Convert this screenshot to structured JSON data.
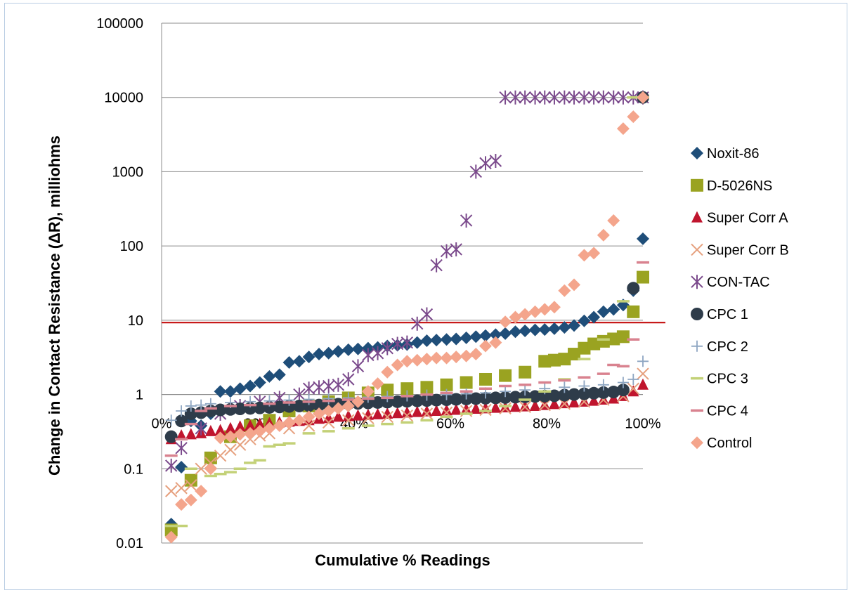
{
  "chart_data": {
    "type": "scatter",
    "title": "",
    "xlabel": "Cumulative % Readings",
    "ylabel": "Change in  Contact Resistance (ΔR), milliohms",
    "x_scale": "linear",
    "y_scale": "log",
    "xlim": [
      0,
      100
    ],
    "ylim": [
      0.01,
      100000
    ],
    "x_ticks": [
      "0%",
      "20%",
      "40%",
      "60%",
      "80%",
      "100%"
    ],
    "y_ticks": [
      "0.01",
      "0.1",
      "1",
      "10",
      "100",
      "1000",
      "10000",
      "100000"
    ],
    "grid": "horizontal",
    "legend_position": "right",
    "reference_line": {
      "y": 9.3,
      "color": "#c00000"
    },
    "series": [
      {
        "name": "Noxit-86",
        "marker": "diamond",
        "color": "#1f4e79",
        "x": [
          2,
          4.1,
          6.1,
          8.2,
          10.2,
          12.2,
          14.3,
          16.3,
          18.4,
          20.4,
          22.4,
          24.5,
          26.5,
          28.6,
          30.6,
          32.7,
          34.7,
          36.7,
          38.8,
          40.8,
          42.9,
          44.9,
          46.9,
          49,
          51,
          53.1,
          55.1,
          57.1,
          59.2,
          61.2,
          63.3,
          65.3,
          67.3,
          69.4,
          71.4,
          73.5,
          75.5,
          77.6,
          79.6,
          81.6,
          83.7,
          85.7,
          87.8,
          89.8,
          91.8,
          93.9,
          95.9,
          98,
          100
        ],
        "y": [
          0.018,
          0.105,
          0.44,
          0.38,
          0.55,
          1.1,
          1.1,
          1.2,
          1.3,
          1.45,
          1.75,
          1.85,
          2.7,
          2.8,
          3.2,
          3.5,
          3.6,
          3.8,
          4.0,
          4.1,
          4.2,
          4.3,
          4.5,
          4.6,
          4.7,
          5.0,
          5.3,
          5.4,
          5.5,
          5.6,
          5.8,
          6.0,
          6.2,
          6.4,
          6.6,
          7.0,
          7.2,
          7.4,
          7.5,
          7.7,
          8.0,
          8.5,
          9.8,
          11,
          13,
          14,
          16,
          25,
          125
        ]
      },
      {
        "name": "D-5026NS",
        "marker": "square",
        "color": "#9aa321",
        "x": [
          2,
          6.1,
          10.2,
          14.3,
          18.4,
          22.4,
          26.5,
          30.6,
          34.7,
          38.8,
          42.9,
          46.9,
          51,
          55.1,
          59.2,
          63.3,
          67.3,
          71.4,
          75.5,
          79.6,
          81.6,
          83.7,
          85.7,
          87.8,
          89.8,
          91.8,
          93.9,
          95.9,
          98,
          100
        ],
        "y": [
          0.015,
          0.07,
          0.14,
          0.27,
          0.38,
          0.45,
          0.6,
          0.7,
          0.8,
          0.9,
          1.05,
          1.15,
          1.2,
          1.25,
          1.35,
          1.45,
          1.6,
          1.8,
          2.0,
          2.8,
          2.9,
          3.0,
          3.5,
          4.2,
          4.8,
          5.2,
          5.6,
          6.0,
          13,
          38
        ]
      },
      {
        "name": "Super Corr A",
        "marker": "triangle",
        "color": "#c0152e",
        "x": [
          2,
          4.1,
          6.1,
          8.2,
          10.2,
          12.2,
          14.3,
          16.3,
          18.4,
          20.4,
          22.4,
          24.5,
          26.5,
          28.6,
          30.6,
          32.7,
          34.7,
          36.7,
          38.8,
          40.8,
          42.9,
          44.9,
          46.9,
          49,
          51,
          53.1,
          55.1,
          57.1,
          59.2,
          61.2,
          63.3,
          65.3,
          67.3,
          69.4,
          71.4,
          73.5,
          75.5,
          77.6,
          79.6,
          81.6,
          83.7,
          85.7,
          87.8,
          89.8,
          91.8,
          93.9,
          95.9,
          98,
          100
        ],
        "y": [
          0.25,
          0.28,
          0.29,
          0.3,
          0.32,
          0.33,
          0.35,
          0.37,
          0.38,
          0.4,
          0.41,
          0.42,
          0.43,
          0.44,
          0.45,
          0.47,
          0.48,
          0.5,
          0.51,
          0.52,
          0.53,
          0.54,
          0.55,
          0.56,
          0.57,
          0.58,
          0.59,
          0.6,
          0.61,
          0.62,
          0.63,
          0.64,
          0.65,
          0.66,
          0.67,
          0.68,
          0.69,
          0.7,
          0.72,
          0.74,
          0.76,
          0.78,
          0.8,
          0.82,
          0.85,
          0.88,
          0.95,
          1.1,
          1.35
        ]
      },
      {
        "name": "Super Corr B",
        "marker": "x",
        "color": "#e6a07e",
        "x": [
          2,
          4.1,
          6.1,
          8.2,
          10.2,
          12.2,
          14.3,
          16.3,
          18.4,
          20.4,
          22.4,
          26.5,
          30.6,
          34.7,
          38.8,
          42.9,
          46.9,
          51,
          55.1,
          59.2,
          63.3,
          67.3,
          71.4,
          75.5,
          79.6,
          83.7,
          87.8,
          91.8,
          95.9,
          98,
          100
        ],
        "y": [
          0.05,
          0.055,
          0.06,
          0.1,
          0.12,
          0.15,
          0.18,
          0.21,
          0.25,
          0.28,
          0.3,
          0.35,
          0.38,
          0.42,
          0.45,
          0.48,
          0.5,
          0.52,
          0.55,
          0.57,
          0.6,
          0.62,
          0.65,
          0.68,
          0.72,
          0.75,
          0.8,
          0.85,
          0.95,
          1.2,
          1.9
        ]
      },
      {
        "name": "CON-TAC",
        "marker": "asterisk",
        "color": "#7b4a8c",
        "x": [
          2,
          4.1,
          8.2,
          12.2,
          16.3,
          20.4,
          24.5,
          28.6,
          30.6,
          32.7,
          34.7,
          36.7,
          38.8,
          40.8,
          42.9,
          44.9,
          46.9,
          49,
          51,
          53.1,
          55.1,
          57.1,
          59.2,
          61.2,
          63.3,
          65.3,
          67.3,
          69.4,
          71.4,
          73.5,
          75.5,
          77.6,
          79.6,
          81.6,
          83.7,
          85.7,
          87.8,
          89.8,
          91.8,
          93.9,
          95.9,
          98,
          100
        ],
        "y": [
          0.11,
          0.19,
          0.35,
          0.55,
          0.7,
          0.8,
          0.9,
          1.0,
          1.2,
          1.25,
          1.3,
          1.35,
          1.6,
          2.4,
          3.4,
          3.6,
          4.2,
          4.8,
          5.0,
          9,
          12,
          55,
          85,
          90,
          220,
          1000,
          1300,
          1400,
          10000,
          10000,
          10000,
          10000,
          10000,
          10000,
          10000,
          10000,
          10000,
          10000,
          10000,
          10000,
          10000,
          10000,
          10000
        ]
      },
      {
        "name": "CPC 1",
        "marker": "circle",
        "color": "#2e3c4a",
        "x": [
          2,
          4.1,
          6.1,
          8.2,
          10.2,
          12.2,
          14.3,
          16.3,
          18.4,
          20.4,
          22.4,
          24.5,
          26.5,
          28.6,
          30.6,
          32.7,
          34.7,
          36.7,
          38.8,
          40.8,
          42.9,
          44.9,
          46.9,
          49,
          51,
          53.1,
          55.1,
          57.1,
          59.2,
          61.2,
          63.3,
          65.3,
          67.3,
          69.4,
          71.4,
          73.5,
          75.5,
          77.6,
          79.6,
          81.6,
          83.7,
          85.7,
          87.8,
          89.8,
          91.8,
          93.9,
          95.9,
          98,
          100
        ],
        "y": [
          0.27,
          0.44,
          0.55,
          0.57,
          0.6,
          0.62,
          0.63,
          0.64,
          0.65,
          0.66,
          0.67,
          0.68,
          0.69,
          0.7,
          0.71,
          0.72,
          0.73,
          0.74,
          0.75,
          0.76,
          0.77,
          0.78,
          0.79,
          0.8,
          0.81,
          0.82,
          0.83,
          0.84,
          0.85,
          0.86,
          0.87,
          0.88,
          0.89,
          0.9,
          0.91,
          0.92,
          0.93,
          0.94,
          0.95,
          0.96,
          0.98,
          1.0,
          1.02,
          1.04,
          1.06,
          1.08,
          1.15,
          27,
          10000
        ]
      },
      {
        "name": "CPC 2",
        "marker": "plus",
        "color": "#8ea6c2",
        "x": [
          2,
          4.1,
          6.1,
          8.2,
          10.2,
          14.3,
          18.4,
          22.4,
          26.5,
          30.6,
          34.7,
          38.8,
          42.9,
          46.9,
          51,
          55.1,
          59.2,
          63.3,
          67.3,
          71.4,
          75.5,
          79.6,
          83.7,
          87.8,
          91.8,
          95.9,
          98,
          100
        ],
        "y": [
          0.45,
          0.6,
          0.7,
          0.72,
          0.75,
          0.78,
          0.8,
          0.82,
          0.84,
          0.86,
          0.88,
          0.9,
          0.92,
          0.94,
          0.96,
          0.98,
          1.0,
          1.02,
          1.05,
          1.1,
          1.15,
          1.2,
          1.25,
          1.3,
          1.35,
          1.45,
          1.6,
          2.8
        ]
      },
      {
        "name": "CPC 3",
        "marker": "dash",
        "color": "#c3d177",
        "x": [
          2,
          4.1,
          6.1,
          10.2,
          12.2,
          14.3,
          16.3,
          18.4,
          20.4,
          22.4,
          24.5,
          26.5,
          30.6,
          34.7,
          38.8,
          42.9,
          46.9,
          51,
          55.1,
          59.2,
          63.3,
          67.3,
          71.4,
          75.5,
          79.6,
          83.7,
          87.8,
          91.8,
          95.9,
          98,
          100
        ],
        "y": [
          0.017,
          0.017,
          0.1,
          0.08,
          0.085,
          0.09,
          0.1,
          0.12,
          0.13,
          0.2,
          0.21,
          0.22,
          0.3,
          0.32,
          0.35,
          0.38,
          0.4,
          0.42,
          0.45,
          0.5,
          0.55,
          0.6,
          0.7,
          0.85,
          1.1,
          1.6,
          3.0,
          5.5,
          18,
          10000,
          10000
        ]
      },
      {
        "name": "CPC 4",
        "marker": "dash",
        "color": "#d9828f",
        "x": [
          2,
          4.1,
          6.1,
          8.2,
          10.2,
          14.3,
          18.4,
          22.4,
          26.5,
          30.6,
          34.7,
          38.8,
          42.9,
          46.9,
          51,
          55.1,
          59.2,
          63.3,
          67.3,
          71.4,
          75.5,
          79.6,
          83.7,
          87.8,
          91.8,
          93.9,
          95.9,
          98,
          100
        ],
        "y": [
          0.15,
          0.25,
          0.4,
          0.6,
          0.65,
          0.7,
          0.72,
          0.75,
          0.78,
          0.8,
          0.82,
          0.85,
          0.88,
          0.9,
          0.95,
          1.0,
          1.05,
          1.1,
          1.2,
          1.3,
          1.35,
          1.45,
          1.55,
          1.7,
          1.9,
          2.5,
          2.4,
          5.5,
          60
        ]
      },
      {
        "name": "Control",
        "marker": "diamond",
        "color": "#f4a58c",
        "x": [
          2,
          4.1,
          6.1,
          8.2,
          10.2,
          12.2,
          14.3,
          16.3,
          18.4,
          20.4,
          22.4,
          24.5,
          26.5,
          28.6,
          30.6,
          32.7,
          34.7,
          36.7,
          38.8,
          40.8,
          42.9,
          44.9,
          46.9,
          49,
          51,
          53.1,
          55.1,
          57.1,
          59.2,
          61.2,
          63.3,
          65.3,
          67.3,
          69.4,
          71.4,
          73.5,
          75.5,
          77.6,
          79.6,
          81.6,
          83.7,
          85.7,
          87.8,
          89.8,
          91.8,
          93.9,
          95.9,
          98,
          100
        ],
        "y": [
          0.012,
          0.033,
          0.038,
          0.05,
          0.1,
          0.26,
          0.27,
          0.29,
          0.3,
          0.32,
          0.35,
          0.38,
          0.42,
          0.45,
          0.5,
          0.55,
          0.6,
          0.65,
          0.7,
          0.8,
          1.1,
          1.4,
          2.0,
          2.5,
          2.8,
          2.9,
          3.0,
          3.1,
          3.1,
          3.2,
          3.3,
          3.5,
          4.5,
          5.0,
          9.5,
          11,
          12,
          13,
          14,
          15,
          25,
          30,
          75,
          80,
          140,
          220,
          3800,
          5500,
          10000
        ]
      }
    ]
  }
}
